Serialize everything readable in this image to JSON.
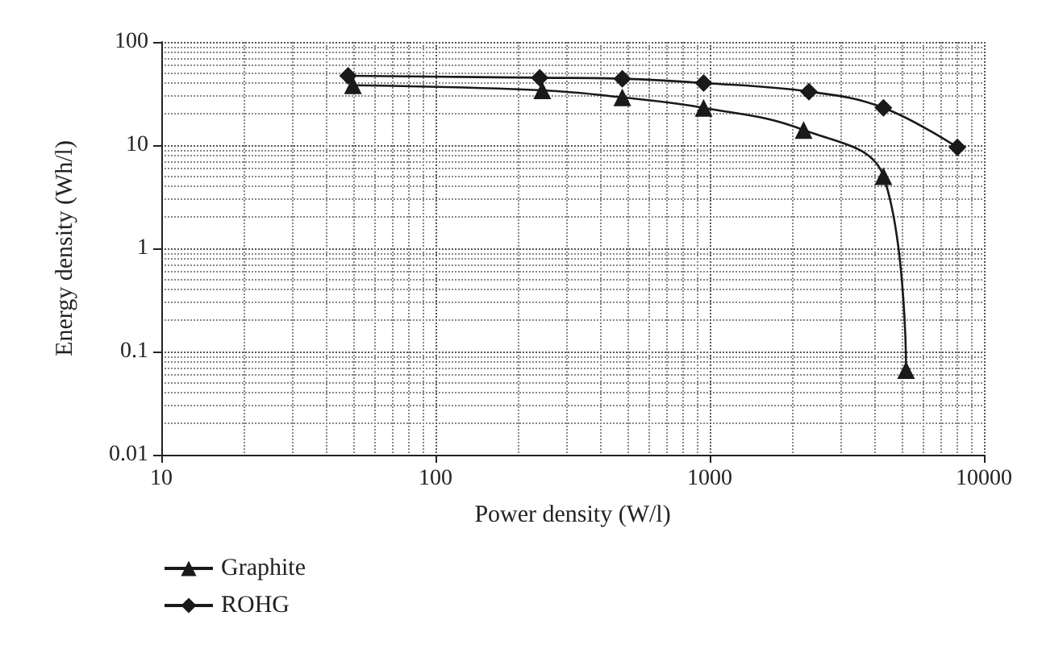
{
  "chart_data": {
    "type": "line",
    "xlabel": "Power density (W/l)",
    "ylabel": "Energy density (Wh/l)",
    "log": "xy",
    "xlim": [
      10,
      10000
    ],
    "xticks": [
      10,
      100,
      1000,
      10000
    ],
    "ylim": [
      0.01,
      100
    ],
    "yticks": [
      0.01,
      0.1,
      1,
      10,
      100
    ],
    "grid": true,
    "legend": "bottom left",
    "series": [
      {
        "name": "Graphite",
        "color": "#1a1a1a",
        "marker": "triangle",
        "x": [
          50,
          245,
          480,
          950,
          2200,
          4300,
          5200
        ],
        "values": [
          38,
          34,
          29,
          23,
          14,
          5,
          0.066
        ]
      },
      {
        "name": "ROHG",
        "color": "#1a1a1a",
        "marker": "diamond",
        "x": [
          48,
          240,
          480,
          950,
          2300,
          4300,
          8000
        ],
        "values": [
          47,
          45,
          44,
          40,
          33,
          23,
          9.5
        ]
      }
    ]
  }
}
